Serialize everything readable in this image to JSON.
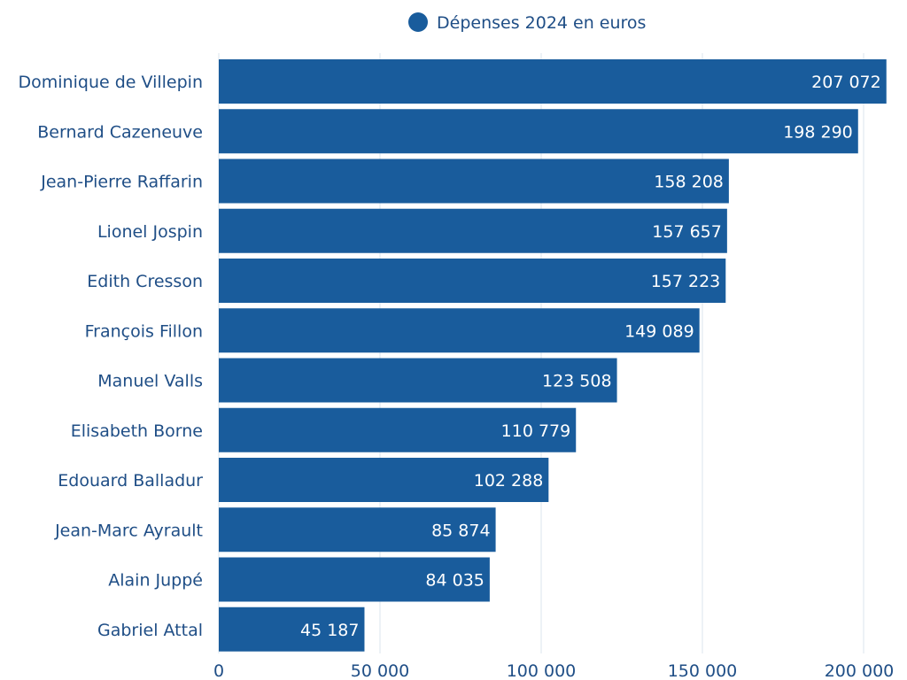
{
  "chart_data": {
    "type": "bar",
    "orientation": "horizontal",
    "title": "",
    "xlabel": "",
    "ylabel": "",
    "categories": [
      "Dominique de Villepin",
      "Bernard Cazeneuve",
      "Jean-Pierre Raffarin",
      "Lionel Jospin",
      "Edith Cresson",
      "François Fillon",
      "Manuel Valls",
      "Elisabeth Borne",
      "Edouard Balladur",
      "Jean-Marc Ayrault",
      "Alain Juppé",
      "Gabriel Attal"
    ],
    "series": [
      {
        "name": "Dépenses 2024 en euros",
        "color": "#195c9c",
        "values": [
          207072,
          198290,
          158208,
          157657,
          157223,
          149089,
          123508,
          110779,
          102288,
          85874,
          84035,
          45187
        ],
        "value_labels": [
          "207 072",
          "198 290",
          "158 208",
          "157 657",
          "157 223",
          "149 089",
          "123 508",
          "110 779",
          "102 288",
          "85 874",
          "84 035",
          "45 187"
        ]
      }
    ],
    "xlim": [
      0,
      200000
    ],
    "xticks": [
      0,
      50000,
      100000,
      150000,
      200000
    ],
    "xtick_labels": [
      "0",
      "50 000",
      "100 000",
      "150 000",
      "200 000"
    ],
    "grid": true,
    "legend_position": "top-center"
  },
  "colors": {
    "bar": "#195c9c",
    "text": "#1f4e86",
    "grid": "#dbe6ee",
    "value_text": "#ffffff"
  }
}
